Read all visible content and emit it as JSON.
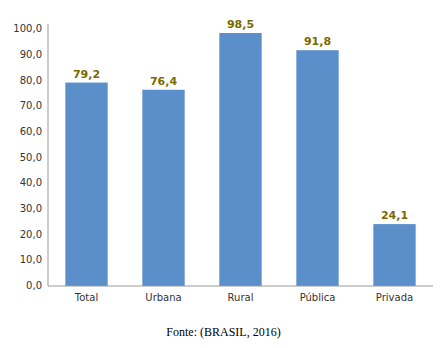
{
  "chart_data": {
    "type": "bar",
    "categories": [
      "Total",
      "Urbana",
      "Rural",
      "Pública",
      "Privada"
    ],
    "values": [
      79.2,
      76.4,
      98.5,
      91.8,
      24.1
    ],
    "value_labels": [
      "79,2",
      "76,4",
      "98,5",
      "91,8",
      "24,1"
    ],
    "data_labels": true,
    "color": "#5b8fc9",
    "label_color": "#7a6a00",
    "ylim": [
      0,
      102
    ],
    "yticks": [
      {
        "value": 0.0,
        "label": "0,0"
      },
      {
        "value": 10.0,
        "label": "10,0"
      },
      {
        "value": 20.0,
        "label": "20,0"
      },
      {
        "value": 30.0,
        "label": "30,0"
      },
      {
        "value": 40.0,
        "label": "40,0"
      },
      {
        "value": 50.0,
        "label": "50,0"
      },
      {
        "value": 60.0,
        "label": "60,0"
      },
      {
        "value": 70.0,
        "label": "70,0"
      },
      {
        "value": 80.0,
        "label": "80,0"
      },
      {
        "value": 90.0,
        "label": "90,0"
      },
      {
        "value": 100.0,
        "label": "100,0"
      }
    ],
    "grid": false,
    "caption": "Fonte: (BRASIL, 2016)"
  }
}
